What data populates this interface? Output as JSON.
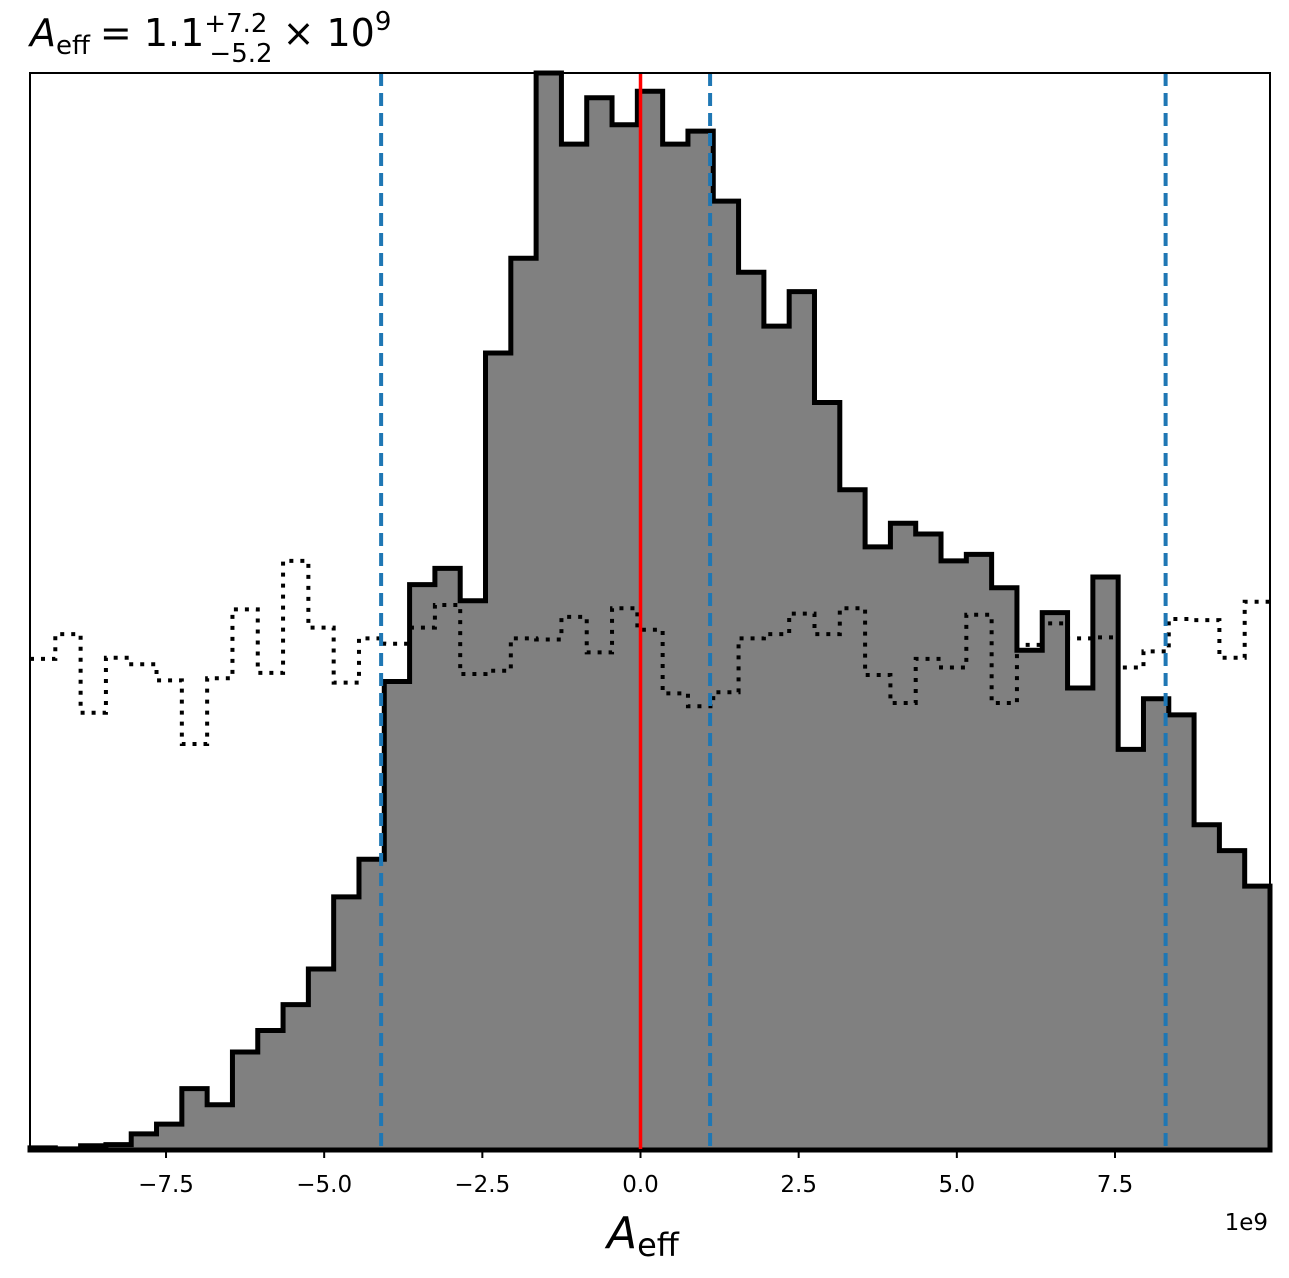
{
  "chart_data": {
    "type": "histogram",
    "title": {
      "symbol": "A",
      "symbol_sub": "eff",
      "median": "= 1.1",
      "upper_err": "+7.2",
      "lower_err": "−5.2",
      "scale": "× 10",
      "scale_exp": "9"
    },
    "xlabel": {
      "symbol": "A",
      "sub": "eff"
    },
    "x_offset_label": "1e9",
    "xlim": [
      -9.65,
      9.95
    ],
    "ylim": [
      0,
      1.0
    ],
    "x_ticks": [
      -7.5,
      -5.0,
      -2.5,
      0.0,
      2.5,
      5.0,
      7.5
    ],
    "x_tick_labels": [
      "−7.5",
      "−5.0",
      "−2.5",
      "0.0",
      "2.5",
      "5.0",
      "7.5"
    ],
    "y_ticks_visible": false,
    "bin_edges": [
      -9.65,
      -9.25,
      -8.85,
      -8.45,
      -8.05,
      -7.65,
      -7.25,
      -6.85,
      -6.45,
      -6.05,
      -5.65,
      -5.25,
      -4.85,
      -4.45,
      -4.05,
      -3.65,
      -3.25,
      -2.85,
      -2.45,
      -2.05,
      -1.65,
      -1.25,
      -0.85,
      -0.45,
      -0.05,
      0.35,
      0.75,
      1.15,
      1.55,
      1.95,
      2.35,
      2.75,
      3.15,
      3.55,
      3.95,
      4.35,
      4.75,
      5.15,
      5.55,
      5.95,
      6.35,
      6.75,
      7.15,
      7.55,
      7.95,
      8.35,
      8.75,
      9.15,
      9.55,
      9.95
    ],
    "series": [
      {
        "style": "filled-step",
        "fill_color": "#808080",
        "edge_color": "#000000",
        "values": [
          0.002,
          0.001,
          0.004,
          0.005,
          0.015,
          0.024,
          0.057,
          0.042,
          0.091,
          0.111,
          0.135,
          0.168,
          0.235,
          0.27,
          0.435,
          0.525,
          0.54,
          0.51,
          0.74,
          0.828,
          1.0,
          0.934,
          0.977,
          0.952,
          0.983,
          0.934,
          0.946,
          0.881,
          0.815,
          0.765,
          0.797,
          0.694,
          0.613,
          0.56,
          0.582,
          0.572,
          0.547,
          0.553,
          0.522,
          0.464,
          0.499,
          0.429,
          0.532,
          0.372,
          0.419,
          0.404,
          0.302,
          0.278,
          0.245
        ]
      },
      {
        "style": "dotted-step",
        "edge_color": "#000000",
        "values": [
          0.456,
          0.479,
          0.406,
          0.457,
          0.451,
          0.436,
          0.377,
          0.438,
          0.502,
          0.443,
          0.547,
          0.485,
          0.434,
          0.475,
          0.47,
          0.485,
          0.506,
          0.442,
          0.445,
          0.475,
          0.474,
          0.495,
          0.462,
          0.503,
          0.483,
          0.424,
          0.412,
          0.425,
          0.475,
          0.479,
          0.498,
          0.479,
          0.503,
          0.441,
          0.415,
          0.456,
          0.448,
          0.497,
          0.415,
          0.469,
          0.489,
          0.475,
          0.476,
          0.448,
          0.463,
          0.493,
          0.492,
          0.457,
          0.509
        ]
      }
    ],
    "vlines": [
      {
        "x": 0.0,
        "color": "#ff0000",
        "style": "solid"
      },
      {
        "x": -4.1,
        "color": "#1f77b4",
        "style": "dashed"
      },
      {
        "x": 1.1,
        "color": "#1f77b4",
        "style": "dashed"
      },
      {
        "x": 8.3,
        "color": "#1f77b4",
        "style": "dashed"
      }
    ],
    "grid": false
  }
}
